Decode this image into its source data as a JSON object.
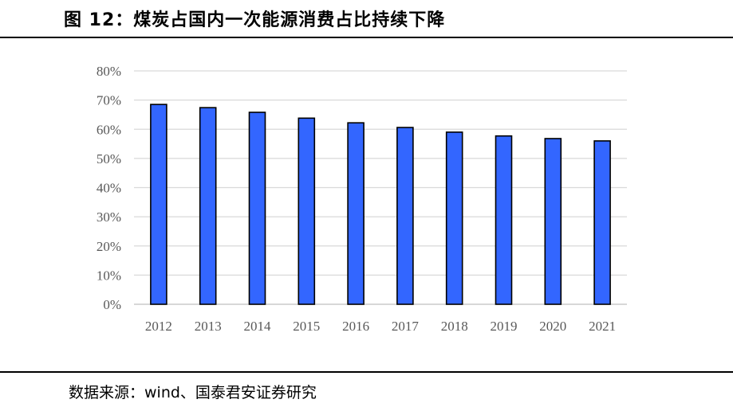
{
  "header": {
    "title": "图 12：煤炭占国内一次能源消费占比持续下降"
  },
  "footer": {
    "source": "数据来源：wind、国泰君安证券研究"
  },
  "colors": {
    "bar_fill": "#3366ff",
    "bar_stroke": "#000000",
    "grid": "#d9d9d9"
  },
  "chart_data": {
    "type": "bar",
    "title": "",
    "xlabel": "",
    "ylabel": "",
    "categories": [
      "2012",
      "2013",
      "2014",
      "2015",
      "2016",
      "2017",
      "2018",
      "2019",
      "2020",
      "2021"
    ],
    "values": [
      68.5,
      67.4,
      65.8,
      63.8,
      62.2,
      60.6,
      59.0,
      57.7,
      56.8,
      56.0
    ],
    "ylim": [
      0,
      80
    ],
    "yticks": [
      "0%",
      "10%",
      "20%",
      "30%",
      "40%",
      "50%",
      "60%",
      "70%",
      "80%"
    ],
    "grid": true,
    "legend": "none"
  }
}
